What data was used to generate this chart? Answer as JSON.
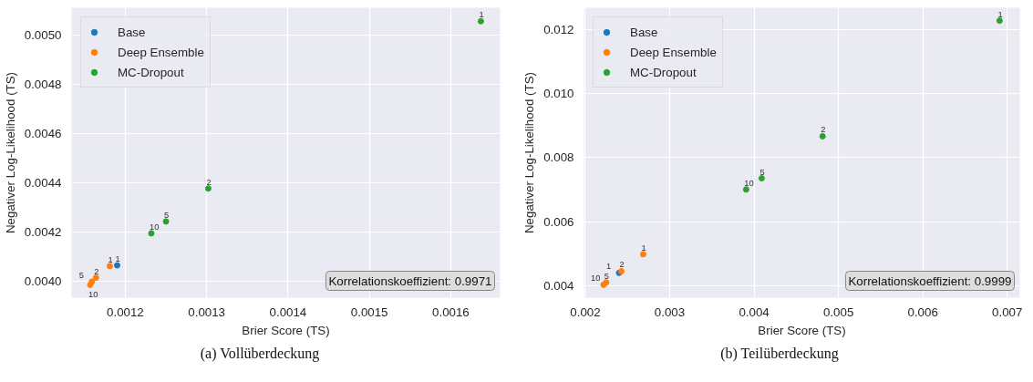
{
  "chart_data": [
    {
      "type": "scatter",
      "xlabel": "Brier Score (TS)",
      "ylabel": "Negativer Log-Likelihood (TS)",
      "xlim": [
        0.001134,
        0.0016606
      ],
      "ylim": [
        0.003934,
        0.00511
      ],
      "xticks": [
        0.0012,
        0.0013,
        0.0014,
        0.0015,
        0.0016
      ],
      "yticks": [
        {
          "value": 0.004,
          "label": "0.0040"
        },
        0.0042,
        0.0044,
        0.0046,
        0.0048,
        {
          "value": 0.005,
          "label": "0.0050"
        }
      ],
      "grid": true,
      "legend": "top left",
      "marker": "circle",
      "series": [
        {
          "name": "Base",
          "color": "#1f77b4",
          "x": [
            0.00119
          ],
          "values": [
            0.004065
          ]
        },
        {
          "name": "Deep Ensemble",
          "color": "#ff7f0e",
          "x": [
            0.001181,
            0.001164,
            0.001159,
            0.001157
          ],
          "values": [
            0.004062,
            0.004015,
            0.003999,
            0.003986
          ]
        },
        {
          "name": "MC-Dropout",
          "color": "#2ca02c",
          "x": [
            0.001637,
            0.001302,
            0.00125,
            0.001232
          ],
          "values": [
            0.005055,
            0.004377,
            0.004243,
            0.004195
          ]
        }
      ],
      "annotations": [
        "Korrelationskoeffizient: 0.9971",
        "(a) Vollüberdeckung",
        {
          "text": "1",
          "x": 0.00119,
          "y": 0.004065
        },
        {
          "text": "1",
          "x": 0.001181,
          "y": 0.004062
        },
        {
          "text": "2",
          "x": 0.001164,
          "y": 0.004015
        },
        {
          "text": "5",
          "x": 0.001159,
          "y": 0.003999
        },
        {
          "text": "10",
          "x": 0.001157,
          "y": 0.003986
        },
        {
          "text": "1",
          "x": 0.001637,
          "y": 0.005055
        },
        {
          "text": "2",
          "x": 0.001302,
          "y": 0.004377
        },
        {
          "text": "5",
          "x": 0.00125,
          "y": 0.004243
        },
        {
          "text": "10",
          "x": 0.001232,
          "y": 0.004195
        }
      ]
    },
    {
      "type": "scatter",
      "xlabel": "Brier Score (TS)",
      "ylabel": "Negativer Log-Likelihood (TS)",
      "xlim": [
        0.001984,
        0.007149
      ],
      "ylim": [
        0.003618,
        0.01269
      ],
      "xticks": [
        0.002,
        0.003,
        0.004,
        0.005,
        0.006,
        0.007
      ],
      "yticks": [
        0.004,
        0.006,
        0.008,
        {
          "value": 0.01,
          "label": "0.010"
        },
        0.012
      ],
      "grid": true,
      "legend": "top left",
      "marker": "circle",
      "series": [
        {
          "name": "Base",
          "color": "#1f77b4",
          "x": [
            0.0024
          ],
          "values": [
            0.004393
          ]
        },
        {
          "name": "Deep Ensemble",
          "color": "#ff7f0e",
          "x": [
            0.002686,
            0.002427,
            0.002247,
            0.002216
          ],
          "values": [
            0.004976,
            0.004446,
            0.004095,
            0.004021
          ]
        },
        {
          "name": "MC-Dropout",
          "color": "#2ca02c",
          "x": [
            0.00691,
            0.004812,
            0.00409,
            0.003906
          ],
          "values": [
            0.012286,
            0.008668,
            0.007353,
            0.007003
          ]
        }
      ],
      "annotations": [
        "Korrelationskoeffizient: 0.9999",
        "(b) Teilüberdeckung",
        {
          "text": "1",
          "x": 0.0024,
          "y": 0.004393
        },
        {
          "text": "1",
          "x": 0.002686,
          "y": 0.004976
        },
        {
          "text": "2",
          "x": 0.002427,
          "y": 0.004446
        },
        {
          "text": "5",
          "x": 0.002247,
          "y": 0.004095
        },
        {
          "text": "10",
          "x": 0.002216,
          "y": 0.004021
        },
        {
          "text": "1",
          "x": 0.00691,
          "y": 0.012286
        },
        {
          "text": "2",
          "x": 0.004812,
          "y": 0.008668
        },
        {
          "text": "5",
          "x": 0.00409,
          "y": 0.007353
        },
        {
          "text": "10",
          "x": 0.003906,
          "y": 0.007003
        }
      ]
    }
  ]
}
